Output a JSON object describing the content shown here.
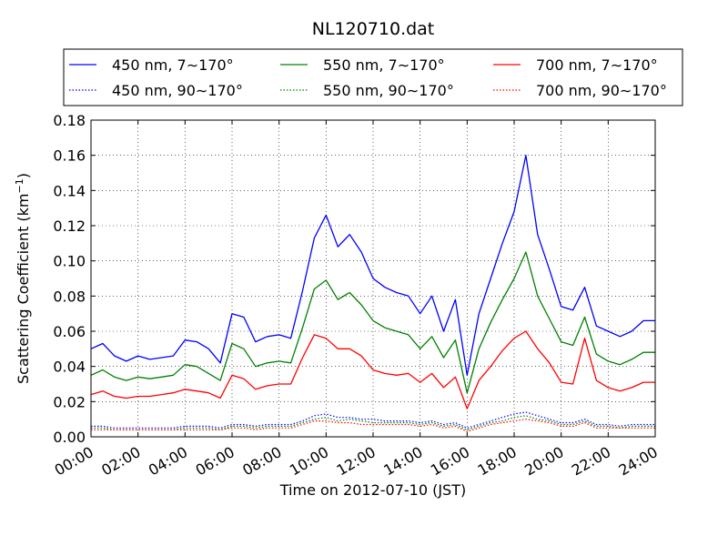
{
  "chart_data": {
    "type": "line",
    "title": "NL120710.dat",
    "xlabel": "Time on 2012-07-10 (JST)",
    "ylabel": "Scattering Coefficient (km",
    "ylabel_sup": "−1",
    "ylabel_tail": ")",
    "xlim": [
      0,
      24
    ],
    "ylim": [
      0.0,
      0.18
    ],
    "grid": true,
    "legend": "top (above plot), 3 columns",
    "x_tick_labels": [
      "00:00",
      "02:00",
      "04:00",
      "06:00",
      "08:00",
      "10:00",
      "12:00",
      "14:00",
      "16:00",
      "18:00",
      "20:00",
      "22:00",
      "24:00"
    ],
    "y_tick_labels": [
      "0.00",
      "0.02",
      "0.04",
      "0.06",
      "0.08",
      "0.10",
      "0.12",
      "0.14",
      "0.16",
      "0.18"
    ],
    "x": [
      0,
      0.5,
      1,
      1.5,
      2,
      2.5,
      3,
      3.5,
      4,
      4.5,
      5,
      5.5,
      6,
      6.5,
      7,
      7.5,
      8,
      8.5,
      9,
      9.5,
      10,
      10.5,
      11,
      11.5,
      12,
      12.5,
      13,
      13.5,
      14,
      14.5,
      15,
      15.5,
      16,
      16.5,
      17,
      17.5,
      18,
      18.5,
      19,
      19.5,
      20,
      20.5,
      21,
      21.5,
      22,
      22.5,
      23,
      23.5,
      24
    ],
    "series": [
      {
        "name": "450 nm, 7∼170°",
        "color": "#0000ff",
        "style": "solid",
        "values": [
          0.05,
          0.053,
          0.046,
          0.043,
          0.046,
          0.044,
          0.045,
          0.046,
          0.055,
          0.054,
          0.05,
          0.042,
          0.07,
          0.068,
          0.054,
          0.057,
          0.058,
          0.056,
          0.083,
          0.113,
          0.126,
          0.108,
          0.115,
          0.105,
          0.09,
          0.085,
          0.082,
          0.08,
          0.07,
          0.08,
          0.06,
          0.078,
          0.035,
          0.07,
          0.09,
          0.11,
          0.128,
          0.16,
          0.115,
          0.095,
          0.074,
          0.072,
          0.085,
          0.063,
          0.06,
          0.057,
          0.06,
          0.066,
          0.066
        ]
      },
      {
        "name": "550 nm, 7∼170°",
        "color": "#008000",
        "style": "solid",
        "values": [
          0.035,
          0.038,
          0.034,
          0.032,
          0.034,
          0.033,
          0.034,
          0.035,
          0.041,
          0.04,
          0.036,
          0.032,
          0.053,
          0.05,
          0.04,
          0.042,
          0.043,
          0.042,
          0.062,
          0.084,
          0.089,
          0.078,
          0.082,
          0.075,
          0.066,
          0.062,
          0.06,
          0.058,
          0.05,
          0.057,
          0.045,
          0.055,
          0.025,
          0.05,
          0.065,
          0.078,
          0.09,
          0.105,
          0.08,
          0.067,
          0.054,
          0.052,
          0.068,
          0.047,
          0.043,
          0.041,
          0.044,
          0.048,
          0.048
        ]
      },
      {
        "name": "700 nm, 7∼170°",
        "color": "#ff0000",
        "style": "solid",
        "values": [
          0.024,
          0.026,
          0.023,
          0.022,
          0.023,
          0.023,
          0.024,
          0.025,
          0.027,
          0.026,
          0.025,
          0.022,
          0.035,
          0.033,
          0.027,
          0.029,
          0.03,
          0.03,
          0.045,
          0.058,
          0.056,
          0.05,
          0.05,
          0.046,
          0.038,
          0.036,
          0.035,
          0.036,
          0.031,
          0.036,
          0.028,
          0.034,
          0.016,
          0.032,
          0.04,
          0.049,
          0.056,
          0.06,
          0.05,
          0.042,
          0.031,
          0.03,
          0.056,
          0.032,
          0.028,
          0.026,
          0.028,
          0.031,
          0.031
        ]
      },
      {
        "name": "450 nm, 90∼170°",
        "color": "#0000ff",
        "style": "dotted",
        "values": [
          0.006,
          0.006,
          0.005,
          0.005,
          0.005,
          0.005,
          0.005,
          0.005,
          0.006,
          0.006,
          0.006,
          0.005,
          0.007,
          0.007,
          0.006,
          0.007,
          0.007,
          0.007,
          0.009,
          0.012,
          0.013,
          0.011,
          0.011,
          0.01,
          0.01,
          0.009,
          0.009,
          0.009,
          0.008,
          0.009,
          0.007,
          0.008,
          0.005,
          0.007,
          0.009,
          0.011,
          0.013,
          0.014,
          0.012,
          0.01,
          0.008,
          0.008,
          0.01,
          0.007,
          0.007,
          0.006,
          0.007,
          0.007,
          0.007
        ]
      },
      {
        "name": "550 nm, 90∼170°",
        "color": "#008000",
        "style": "dotted",
        "values": [
          0.005,
          0.005,
          0.004,
          0.004,
          0.004,
          0.004,
          0.004,
          0.004,
          0.005,
          0.005,
          0.005,
          0.004,
          0.006,
          0.006,
          0.005,
          0.006,
          0.006,
          0.006,
          0.008,
          0.01,
          0.011,
          0.009,
          0.01,
          0.009,
          0.008,
          0.008,
          0.008,
          0.008,
          0.007,
          0.008,
          0.006,
          0.007,
          0.004,
          0.006,
          0.008,
          0.009,
          0.011,
          0.012,
          0.01,
          0.009,
          0.007,
          0.007,
          0.009,
          0.006,
          0.006,
          0.005,
          0.006,
          0.006,
          0.006
        ]
      },
      {
        "name": "700 nm, 90∼170°",
        "color": "#ff0000",
        "style": "dotted",
        "values": [
          0.004,
          0.004,
          0.004,
          0.004,
          0.004,
          0.004,
          0.004,
          0.004,
          0.004,
          0.004,
          0.004,
          0.004,
          0.005,
          0.005,
          0.004,
          0.005,
          0.005,
          0.005,
          0.007,
          0.009,
          0.009,
          0.008,
          0.008,
          0.007,
          0.007,
          0.007,
          0.007,
          0.007,
          0.006,
          0.007,
          0.005,
          0.006,
          0.003,
          0.005,
          0.007,
          0.008,
          0.009,
          0.01,
          0.009,
          0.008,
          0.006,
          0.006,
          0.008,
          0.005,
          0.005,
          0.005,
          0.005,
          0.005,
          0.005
        ]
      }
    ]
  }
}
